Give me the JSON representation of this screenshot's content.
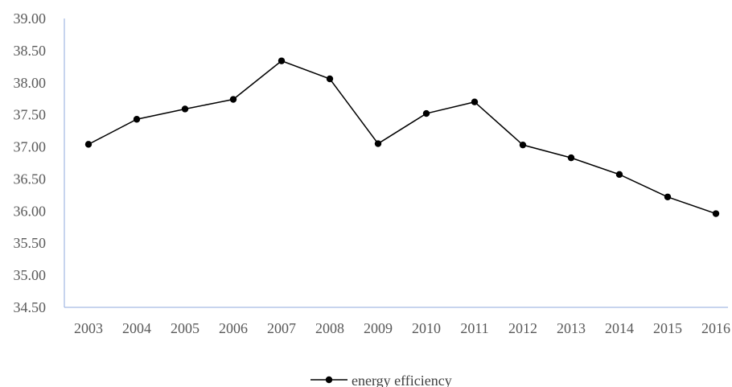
{
  "chart_data": {
    "type": "line",
    "title": "",
    "xlabel": "",
    "ylabel": "",
    "categories": [
      "2003",
      "2004",
      "2005",
      "2006",
      "2007",
      "2008",
      "2009",
      "2010",
      "2011",
      "2012",
      "2013",
      "2014",
      "2015",
      "2016"
    ],
    "series": [
      {
        "name": "energy efficiency",
        "values": [
          37.04,
          37.43,
          37.59,
          37.74,
          38.34,
          38.06,
          37.05,
          37.52,
          37.7,
          37.03,
          36.83,
          36.57,
          36.22,
          35.96
        ],
        "color": "#000000",
        "marker": "circle"
      }
    ],
    "ylim": [
      34.5,
      39.0
    ],
    "yticks": [
      "34.50",
      "35.00",
      "35.50",
      "36.00",
      "36.50",
      "37.00",
      "37.50",
      "38.00",
      "38.50",
      "39.00"
    ],
    "grid": false,
    "legend_position": "bottom",
    "axis_color": "#8faadc"
  }
}
